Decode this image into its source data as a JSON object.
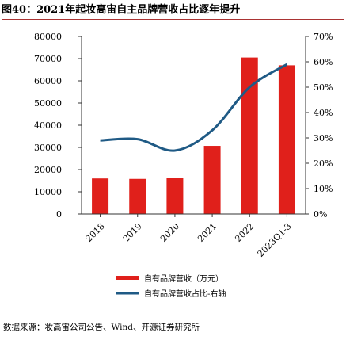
{
  "figure_title": "图40：2021年起妆高宙自主品牌营收占比逐年提升",
  "source_text": "数据来源：妆高宙公司公告、Wind、开源证券研究所",
  "colors": {
    "bar": "#e0201b",
    "line": "#1f5a85",
    "axis": "#333333"
  },
  "chart_data": {
    "type": "bar",
    "categories": [
      "2018",
      "2019",
      "2020",
      "2021",
      "2022",
      "2023Q1-3"
    ],
    "series": [
      {
        "name": "自有品牌营收（万元）",
        "type": "bar",
        "axis": "left",
        "values": [
          16000,
          15800,
          16200,
          30700,
          70500,
          67000
        ]
      },
      {
        "name": "自有品牌营收占比-右轴",
        "type": "line",
        "axis": "right",
        "values": [
          0.29,
          0.295,
          0.25,
          0.33,
          0.5,
          0.59
        ]
      }
    ],
    "ylim_left": [
      0,
      80000
    ],
    "yticks_left": [
      "0",
      "10000",
      "20000",
      "30000",
      "40000",
      "50000",
      "60000",
      "70000",
      "80000"
    ],
    "ylim_right": [
      0,
      0.7
    ],
    "yticks_right": [
      "0%",
      "10%",
      "20%",
      "30%",
      "40%",
      "50%",
      "60%",
      "70%"
    ],
    "legend_placement": "bottom-center",
    "grid": false
  }
}
